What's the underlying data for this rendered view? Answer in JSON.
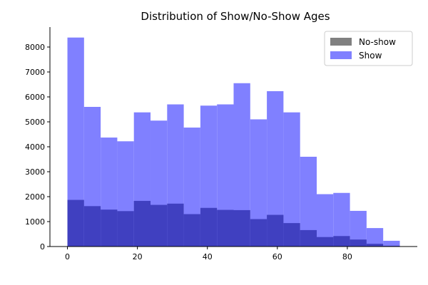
{
  "chart_data": {
    "type": "bar",
    "title": "Distribution of Show/No-Show Ages",
    "xlabel": "",
    "ylabel": "",
    "xlim": [
      -5,
      100
    ],
    "ylim": [
      0,
      8800
    ],
    "xticks": [
      0,
      20,
      40,
      60,
      80
    ],
    "yticks": [
      0,
      1000,
      2000,
      3000,
      4000,
      5000,
      6000,
      7000,
      8000
    ],
    "bin_edges": [
      0,
      4.75,
      9.5,
      14.25,
      19,
      23.75,
      28.5,
      33.25,
      38,
      42.75,
      47.5,
      52.25,
      57,
      61.75,
      66.5,
      71.25,
      76,
      80.75,
      85.5,
      90.25,
      95
    ],
    "series": [
      {
        "name": "Show",
        "color": "#8080ff",
        "values": [
          8380,
          5600,
          4370,
          4220,
          5380,
          5050,
          5700,
          4770,
          5650,
          5700,
          6550,
          5100,
          6230,
          5380,
          3600,
          2100,
          2150,
          1430,
          740,
          230
        ]
      },
      {
        "name": "No-show",
        "color": "#808080",
        "values": [
          1870,
          1620,
          1480,
          1420,
          1830,
          1670,
          1720,
          1300,
          1550,
          1470,
          1460,
          1100,
          1270,
          940,
          660,
          380,
          420,
          280,
          110,
          30
        ]
      }
    ],
    "overlap_color": "#4040c0",
    "grid": false,
    "legend": {
      "position": "top-right",
      "entries": [
        {
          "label": "No-show",
          "color": "#808080"
        },
        {
          "label": "Show",
          "color": "#8080ff"
        }
      ]
    }
  }
}
